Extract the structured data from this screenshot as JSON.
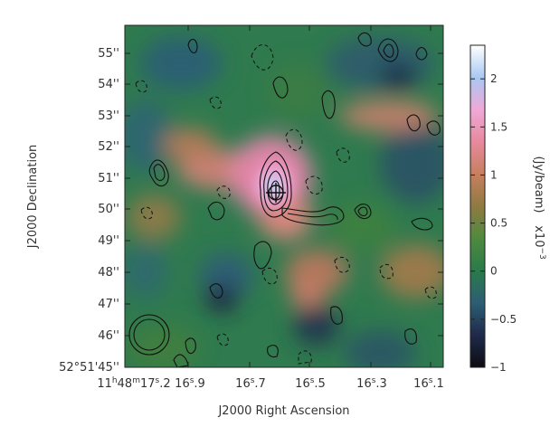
{
  "image": {
    "xlabel": "J2000 Right Ascension",
    "ylabel": "J2000 Declination",
    "x_ticks": [
      {
        "pre": "11",
        "h": "h",
        "mid": "48",
        "m": "m",
        "sec": "17",
        "s": "s",
        "frac": ".2"
      },
      {
        "pre": "",
        "h": "",
        "mid": "",
        "m": "",
        "sec": "16",
        "s": "s",
        "frac": ".9"
      },
      {
        "pre": "",
        "h": "",
        "mid": "",
        "m": "",
        "sec": "16",
        "s": "s",
        "frac": ".7"
      },
      {
        "pre": "",
        "h": "",
        "mid": "",
        "m": "",
        "sec": "16",
        "s": "s",
        "frac": ".5"
      },
      {
        "pre": "",
        "h": "",
        "mid": "",
        "m": "",
        "sec": "16",
        "s": "s",
        "frac": ".3"
      },
      {
        "pre": "",
        "h": "",
        "mid": "",
        "m": "",
        "sec": "16",
        "s": "s",
        "frac": ".1"
      }
    ],
    "y_ticks": [
      "52°51'45''",
      "46''",
      "47''",
      "48''",
      "49''",
      "50''",
      "51''",
      "52''",
      "53''",
      "54''",
      "55''"
    ]
  },
  "colorbar": {
    "label": "(Jy/beam)",
    "exponent_base": "x10",
    "exponent_power": "−3",
    "tick_labels": [
      "−1",
      "−0.5",
      "0",
      "0.5",
      "1",
      "1.5",
      "2"
    ],
    "tick_values": [
      -1,
      -0.5,
      0,
      0.5,
      1,
      1.5,
      2
    ],
    "range": [
      -1,
      2.35
    ],
    "colors": [
      "#0c0c12",
      "#1f2a4a",
      "#2c5e74",
      "#2b7a4a",
      "#4e8a3e",
      "#8f7a42",
      "#c77f5e",
      "#e7899e",
      "#f0a8d8",
      "#a9c8f2",
      "#ffffff"
    ]
  },
  "source_marker": {
    "name": "target-marker"
  },
  "beam": {
    "name": "beam-ellipse"
  }
}
